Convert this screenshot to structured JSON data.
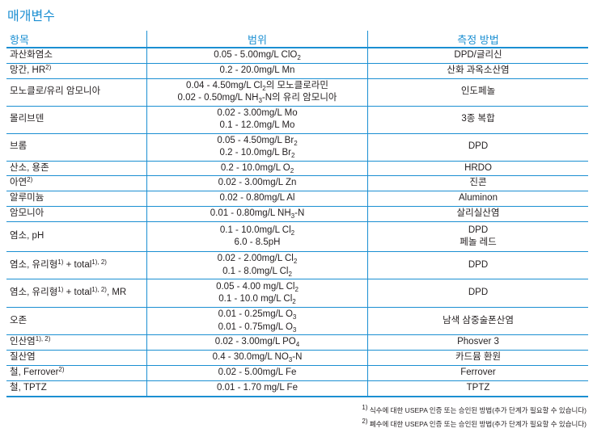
{
  "title": "매개변수",
  "headers": [
    "항목",
    "범위",
    "측정 방법"
  ],
  "colors": {
    "accent": "#1b8fd2"
  },
  "rows": [
    {
      "item": [
        "과산화염소"
      ],
      "range": [
        [
          "0.05 - 5.00mg/L ClO",
          {
            "sub": "2"
          }
        ]
      ],
      "method": [
        "DPD/글리신"
      ],
      "h": 18
    },
    {
      "item": [
        "망간, HR",
        {
          "sup": "2)"
        }
      ],
      "range": [
        [
          "0.2 - 20.0mg/L Mn"
        ]
      ],
      "method": [
        "산화 과옥소산염"
      ],
      "h": 19
    },
    {
      "item": [
        "모노클로/유리 암모니아"
      ],
      "range": [
        [
          "0.04 - 4.50mg/L Cl",
          {
            "sub": "2"
          },
          "의 모노클로라민"
        ],
        [
          "0.02 - 0.50mg/L NH",
          {
            "sub": "3"
          },
          "-N의 유리 암모니아"
        ]
      ],
      "method": [
        "인도페놀"
      ],
      "h": 34
    },
    {
      "item": [
        "몰리브덴"
      ],
      "range": [
        [
          "0.02 - 3.00mg/L Mo"
        ],
        [
          "0.1 - 12.0mg/L Mo"
        ]
      ],
      "method": [
        "3종 복합"
      ],
      "h": 34
    },
    {
      "item": [
        "브롬"
      ],
      "range": [
        [
          "0.05 - 4.50mg/L Br",
          {
            "sub": "2"
          }
        ],
        [
          "0.2 - 10.0mg/L Br",
          {
            "sub": "2"
          }
        ]
      ],
      "method": [
        "DPD"
      ],
      "h": 34
    },
    {
      "item": [
        "산소, 용존"
      ],
      "range": [
        [
          "0.2 - 10.0mg/L O",
          {
            "sub": "2"
          }
        ]
      ],
      "method": [
        "HRDO"
      ],
      "h": 18
    },
    {
      "item": [
        "아연",
        {
          "sup": "2)"
        }
      ],
      "range": [
        [
          "0.02 - 3.00mg/L Zn"
        ]
      ],
      "method": [
        "진콘"
      ],
      "h": 19
    },
    {
      "item": [
        "알루미늄"
      ],
      "range": [
        [
          "0.02 - 0.80mg/L Al"
        ]
      ],
      "method": [
        "Aluminon"
      ],
      "h": 19
    },
    {
      "item": [
        "암모니아"
      ],
      "range": [
        [
          "0.01 - 0.80mg/L NH",
          {
            "sub": "3"
          },
          "-N"
        ]
      ],
      "method": [
        "살리실산염"
      ],
      "h": 19
    },
    {
      "item": [
        "염소, pH"
      ],
      "range": [
        [
          "0.1 - 10.0mg/L Cl",
          {
            "sub": "2"
          }
        ],
        [
          "6.0 - 8.5pH"
        ]
      ],
      "method": [
        "DPD",
        "페놀 레드"
      ],
      "h": 37
    },
    {
      "item": [
        "염소, 유리형",
        {
          "sup": "1)"
        },
        " + total",
        {
          "sup": "1), 2)"
        }
      ],
      "range": [
        [
          "0.02 - 2.00mg/L Cl",
          {
            "sub": "2"
          }
        ],
        [
          "0.1 - 8.0mg/L Cl",
          {
            "sub": "2"
          }
        ]
      ],
      "method": [
        "DPD"
      ],
      "h": 33
    },
    {
      "item": [
        "염소, 유리형",
        {
          "sup": "1)"
        },
        " + total",
        {
          "sup": "1), 2)"
        },
        ", MR"
      ],
      "range": [
        [
          "0.05 - 4.00 mg/L Cl",
          {
            "sub": "2"
          }
        ],
        [
          "0.1 - 10.0 mg/L Cl",
          {
            "sub": "2"
          }
        ]
      ],
      "method": [
        "DPD"
      ],
      "h": 35
    },
    {
      "item": [
        "오존"
      ],
      "range": [
        [
          "0.01 - 0.25mg/L O",
          {
            "sub": "3"
          }
        ],
        [
          "0.01 - 0.75mg/L O",
          {
            "sub": "3"
          }
        ]
      ],
      "method": [
        "남색 삼중술폰산염"
      ],
      "h": 33
    },
    {
      "item": [
        "인산염",
        {
          "sup": "1), 2)"
        }
      ],
      "range": [
        [
          "0.02 - 3.00mg/L PO",
          {
            "sub": "4"
          }
        ]
      ],
      "method": [
        "Phosver 3"
      ],
      "h": 19
    },
    {
      "item": [
        "질산염"
      ],
      "range": [
        [
          "0.4 - 30.0mg/L NO",
          {
            "sub": "3"
          },
          "-N"
        ]
      ],
      "method": [
        "카드뮴 환원"
      ],
      "h": 19
    },
    {
      "item": [
        "철, Ferrover",
        {
          "sup": "2)"
        }
      ],
      "range": [
        [
          "0.02 - 5.00mg/L Fe"
        ]
      ],
      "method": [
        "Ferrover"
      ],
      "h": 19
    },
    {
      "item": [
        "철, TPTZ"
      ],
      "range": [
        [
          "0.01 - 1.70 mg/L Fe"
        ]
      ],
      "method": [
        "TPTZ"
      ],
      "h": 19
    }
  ],
  "footnotes": [
    {
      "mark": "1)",
      "text": " 식수에 대한 USEPA 인증 또는 승인된 방법(추가 단계가 필요할 수 있습니다)"
    },
    {
      "mark": "2)",
      "text": " 폐수에 대한 USEPA 인증 또는 승인된 방법(추가 단계가 필요할 수 있습니다)"
    }
  ]
}
